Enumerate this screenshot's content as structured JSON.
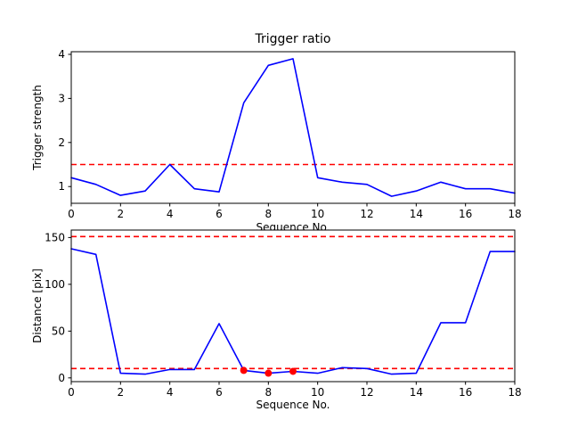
{
  "colors": {
    "line": "#0000ff",
    "threshold": "#ff0000",
    "marker": "#ff0000",
    "axis": "#000000",
    "background": "#ffffff"
  },
  "chart_data": [
    {
      "type": "line",
      "title": "Trigger ratio",
      "xlabel": "Sequence No.",
      "ylabel": "Trigger strength",
      "x": [
        0,
        1,
        2,
        3,
        4,
        5,
        6,
        7,
        8,
        9,
        10,
        11,
        12,
        13,
        14,
        15,
        16,
        17,
        18
      ],
      "series": [
        {
          "name": "trigger-strength",
          "color": "#0000ff",
          "values": [
            1.2,
            1.05,
            0.8,
            0.9,
            1.5,
            0.95,
            0.88,
            2.9,
            3.75,
            3.9,
            1.2,
            1.1,
            1.05,
            0.78,
            0.9,
            1.1,
            0.95,
            0.95,
            0.85
          ]
        }
      ],
      "thresholds": [
        1.5
      ],
      "xlim": [
        0,
        18
      ],
      "ylim": [
        0.62,
        4.06
      ],
      "xticks": [
        0,
        2,
        4,
        6,
        8,
        10,
        12,
        14,
        16,
        18
      ],
      "yticks": [
        1,
        2,
        3,
        4
      ],
      "grid": false,
      "legend": "none"
    },
    {
      "type": "line",
      "title": "",
      "xlabel": "Sequence No.",
      "ylabel": "Distance [pix]",
      "x": [
        0,
        1,
        2,
        3,
        4,
        5,
        6,
        7,
        8,
        9,
        10,
        11,
        12,
        13,
        14,
        15,
        16,
        17,
        18
      ],
      "series": [
        {
          "name": "distance",
          "color": "#0000ff",
          "values": [
            138,
            132,
            5,
            4,
            9,
            9,
            58,
            8,
            5,
            7,
            5,
            11,
            10,
            4,
            5,
            59,
            59,
            135,
            135
          ]
        }
      ],
      "thresholds": [
        151,
        10
      ],
      "markers": {
        "x": [
          7,
          8,
          9
        ],
        "y": [
          8,
          5,
          7
        ]
      },
      "xlim": [
        0,
        18
      ],
      "ylim": [
        -4,
        158
      ],
      "xticks": [
        0,
        2,
        4,
        6,
        8,
        10,
        12,
        14,
        16,
        18
      ],
      "yticks": [
        0,
        50,
        100,
        150
      ],
      "grid": false,
      "legend": "none"
    }
  ]
}
